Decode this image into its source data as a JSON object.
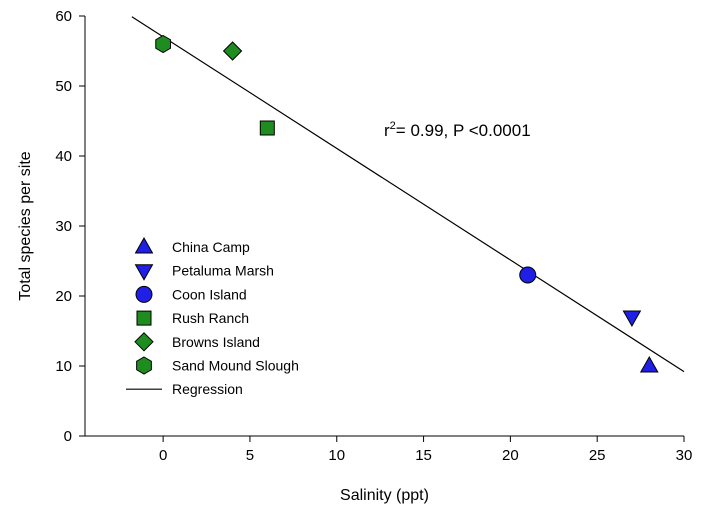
{
  "chart_data": {
    "type": "scatter",
    "xlabel": "Salinity (ppt)",
    "ylabel": "Total species per site",
    "xlim": [
      -4.5,
      30
    ],
    "ylim": [
      0,
      60
    ],
    "x_ticks": [
      0,
      5,
      10,
      15,
      20,
      25,
      30
    ],
    "y_ticks": [
      0,
      10,
      20,
      30,
      40,
      50,
      60
    ],
    "grid": false,
    "legend_position": "bottom-left",
    "annotation": {
      "prefix": "r",
      "superscript": "2",
      "rest": "= 0.99, P <0.0001"
    },
    "series": [
      {
        "name": "China Camp",
        "marker": "triangle-up",
        "color": "#1f1fe6",
        "points": [
          {
            "x": 28,
            "y": 10
          }
        ]
      },
      {
        "name": "Petaluma Marsh",
        "marker": "triangle-down",
        "color": "#1f1fe6",
        "points": [
          {
            "x": 27,
            "y": 17
          }
        ]
      },
      {
        "name": "Coon Island",
        "marker": "circle",
        "color": "#1f1fe6",
        "points": [
          {
            "x": 21,
            "y": 23
          }
        ]
      },
      {
        "name": "Rush Ranch",
        "marker": "square",
        "color": "#1e8c1e",
        "points": [
          {
            "x": 6,
            "y": 44
          }
        ]
      },
      {
        "name": "Browns Island",
        "marker": "diamond",
        "color": "#1e8c1e",
        "points": [
          {
            "x": 4,
            "y": 55
          }
        ]
      },
      {
        "name": "Sand Mound Slough",
        "marker": "hexagon",
        "color": "#1e8c1e",
        "points": [
          {
            "x": 0,
            "y": 56
          }
        ]
      }
    ],
    "regression": {
      "name": "Regression",
      "x": [
        -1.8,
        30
      ],
      "y": [
        59.9,
        9.2
      ]
    }
  }
}
